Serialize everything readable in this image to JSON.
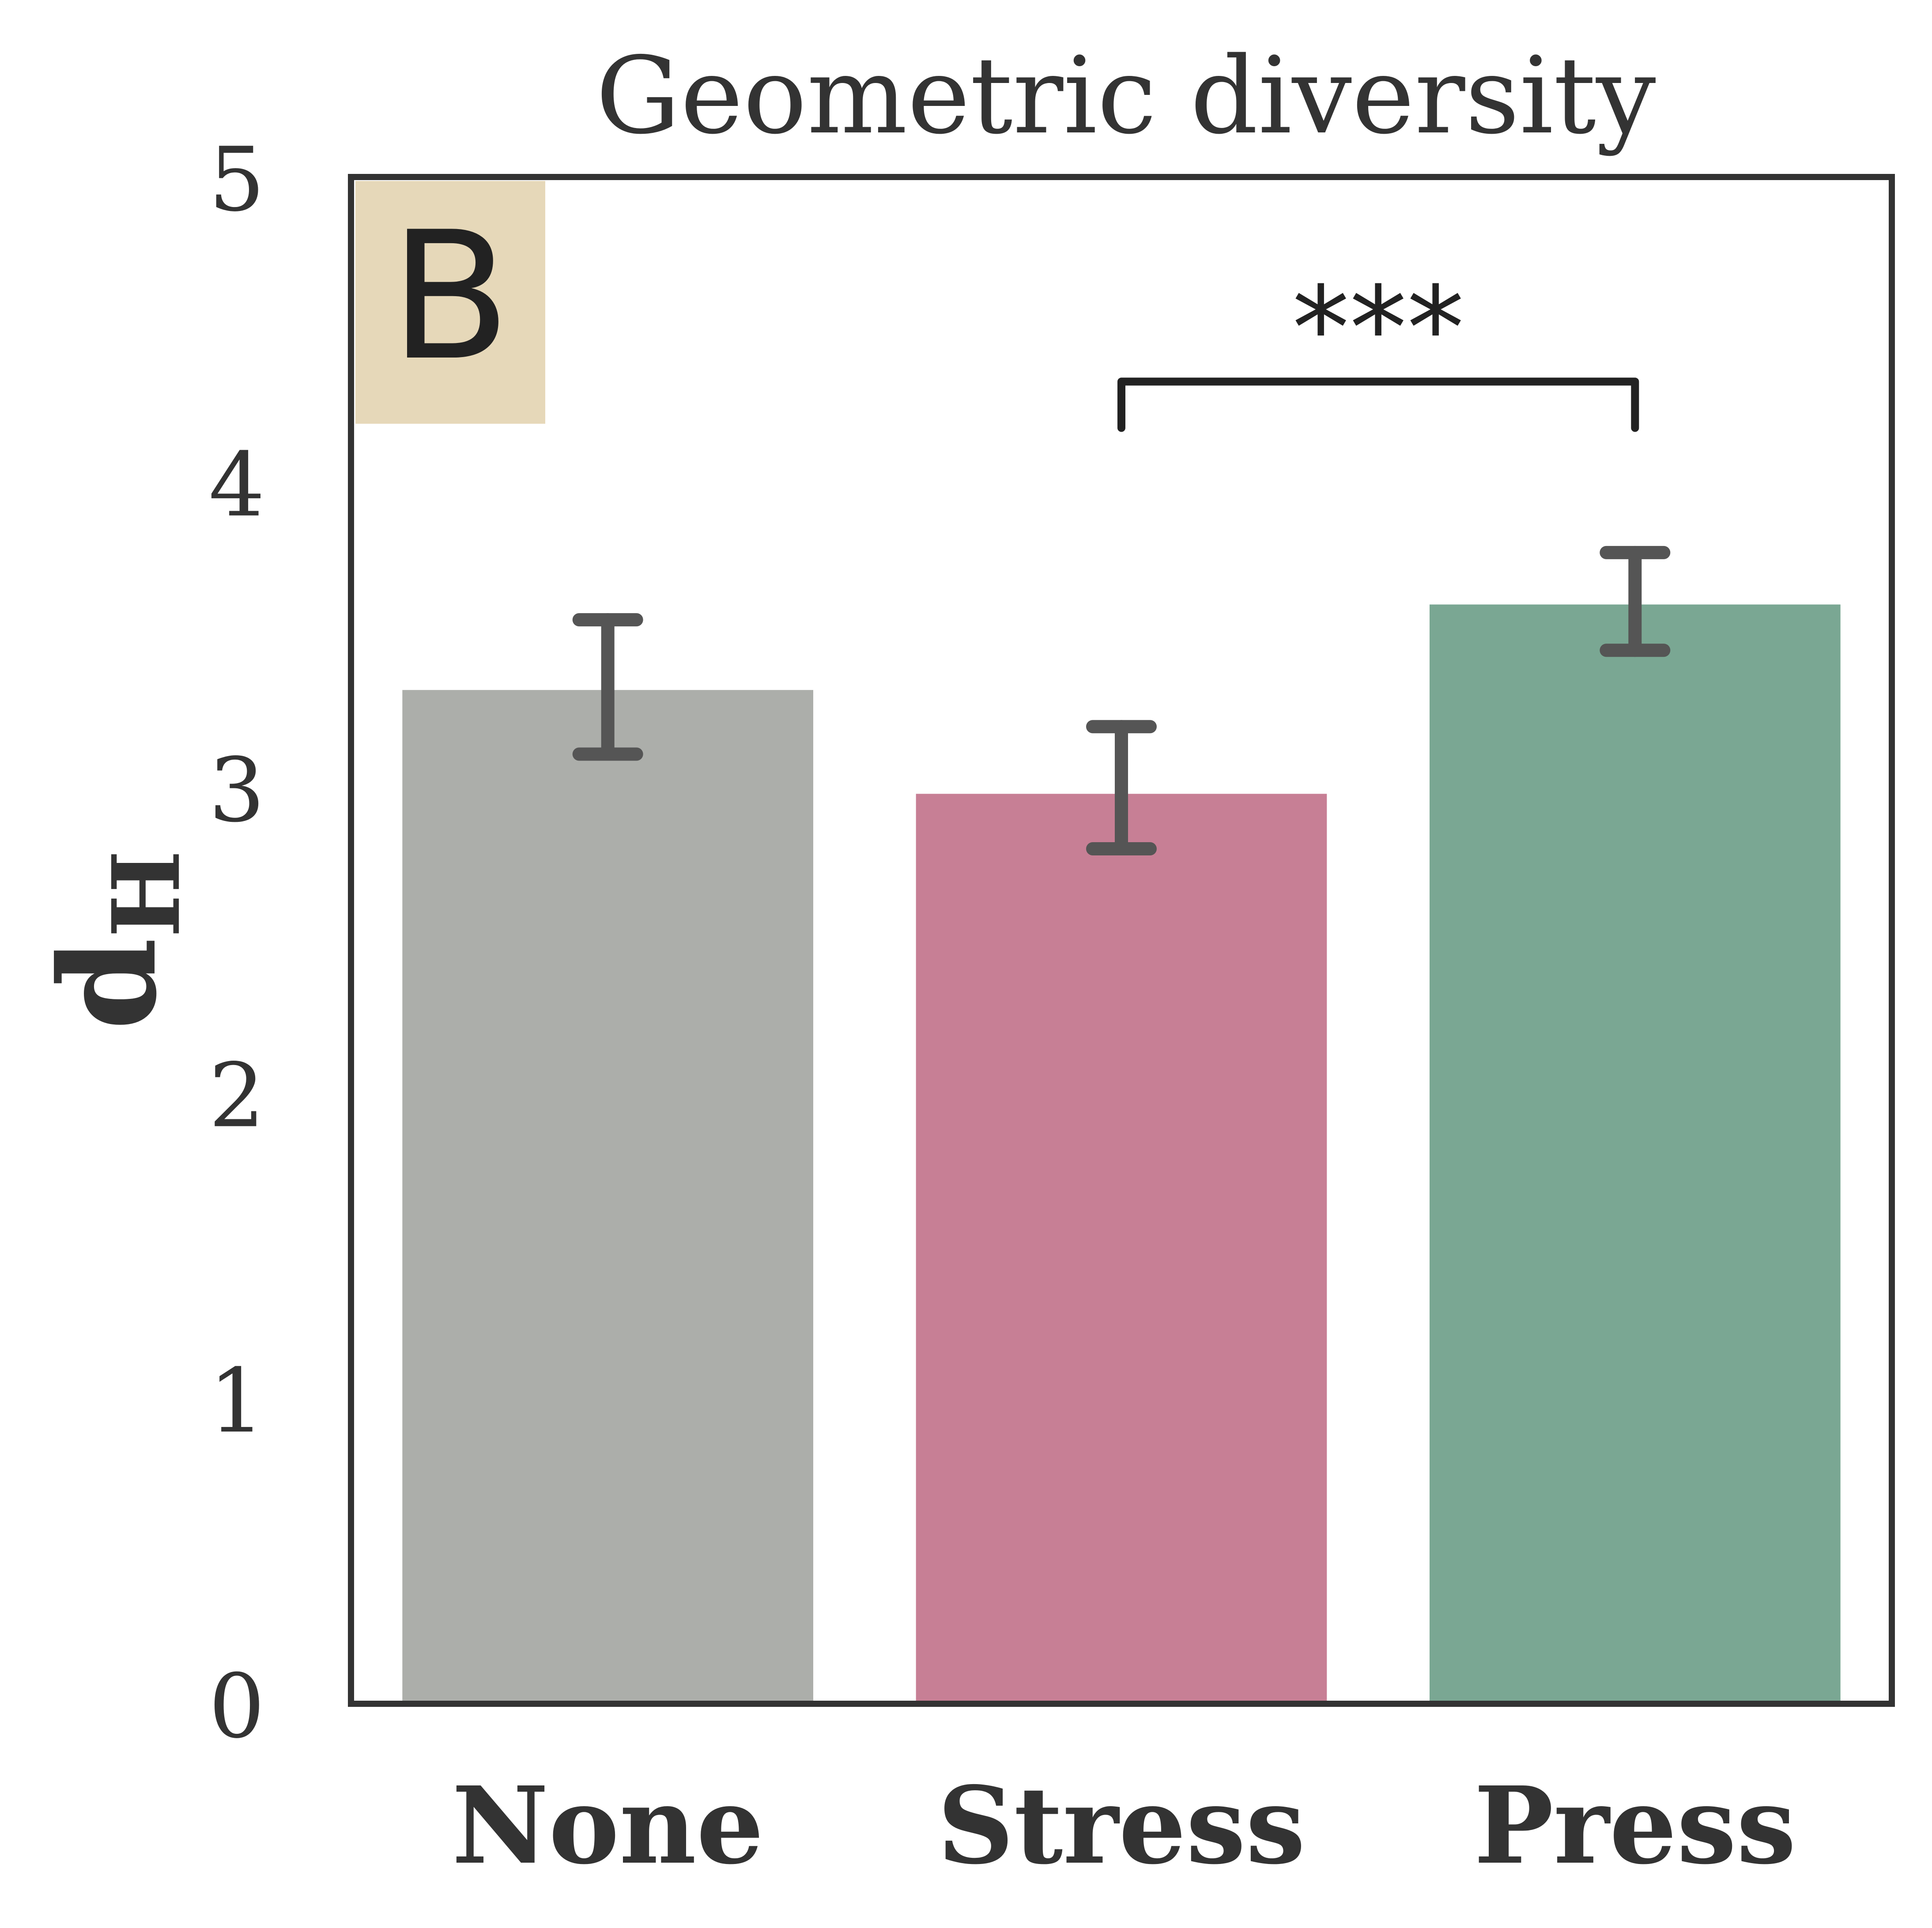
{
  "chart_data": {
    "type": "bar",
    "title": "Geometric diversity",
    "panel_label": "B",
    "ylabel_main": "d",
    "ylabel_sub": "H",
    "xlabel": "",
    "categories": [
      "None",
      "Stress",
      "Press"
    ],
    "values": [
      3.32,
      2.98,
      3.6
    ],
    "errors": [
      {
        "low": 3.11,
        "high": 3.55
      },
      {
        "low": 2.8,
        "high": 3.2
      },
      {
        "low": 3.45,
        "high": 3.77
      }
    ],
    "colors": [
      "#acaeaa",
      "#c77f95",
      "#7aa793"
    ],
    "ylim": [
      0,
      5
    ],
    "yticks": [
      "0",
      "1",
      "2",
      "3",
      "4",
      "5"
    ],
    "significance": {
      "from": 1,
      "to": 2,
      "label": "***",
      "y_level": 4.33
    },
    "panel_label_color": "#e6d8b9",
    "frame_color": "#333333",
    "errorbar_color": "#555555"
  }
}
